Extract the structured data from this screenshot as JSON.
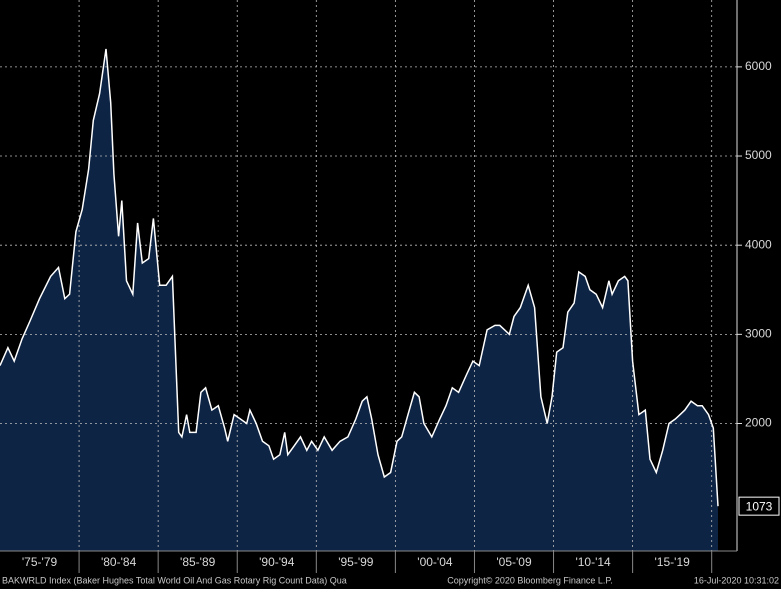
{
  "chart_data": {
    "type": "area",
    "x": [
      1975.0,
      1975.5,
      1975.9,
      1976.4,
      1976.9,
      1977.5,
      1978.2,
      1978.7,
      1979.1,
      1979.4,
      1979.8,
      1980.2,
      1980.6,
      1980.9,
      1981.3,
      1981.7,
      1982.0,
      1982.2,
      1982.5,
      1982.7,
      1983.0,
      1983.4,
      1983.7,
      1984.0,
      1984.4,
      1984.7,
      1985.1,
      1985.5,
      1985.9,
      1986.3,
      1986.5,
      1986.8,
      1987.0,
      1987.4,
      1987.7,
      1988.0,
      1988.4,
      1988.8,
      1989.2,
      1989.4,
      1989.8,
      1990.2,
      1990.6,
      1990.8,
      1991.2,
      1991.6,
      1992.0,
      1992.3,
      1992.7,
      1993.0,
      1993.2,
      1993.6,
      1994.0,
      1994.4,
      1994.7,
      1995.1,
      1995.5,
      1996.0,
      1996.5,
      1997.0,
      1997.5,
      1997.9,
      1998.2,
      1998.5,
      1998.9,
      1999.3,
      1999.7,
      2000.1,
      2000.4,
      2000.8,
      2001.2,
      2001.5,
      2001.8,
      2002.3,
      2002.8,
      2003.2,
      2003.6,
      2004.0,
      2004.5,
      2004.9,
      2005.3,
      2005.8,
      2006.3,
      2006.6,
      2007.2,
      2007.5,
      2007.9,
      2008.4,
      2008.8,
      2009.2,
      2009.6,
      2009.9,
      2010.2,
      2010.6,
      2010.9,
      2011.3,
      2011.6,
      2012.0,
      2012.3,
      2012.7,
      2013.1,
      2013.5,
      2013.7,
      2014.1,
      2014.5,
      2014.7,
      2015.0,
      2015.4,
      2015.8,
      2016.1,
      2016.5,
      2016.9,
      2017.3,
      2017.7,
      2018.0,
      2018.3,
      2018.7,
      2019.1,
      2019.4,
      2019.8,
      2020.1,
      2020.4
    ],
    "y": [
      2650,
      2850,
      2700,
      2950,
      3150,
      3400,
      3650,
      3750,
      3400,
      3450,
      4150,
      4400,
      4850,
      5400,
      5700,
      6200,
      5600,
      4800,
      4100,
      4500,
      3600,
      3450,
      4250,
      3800,
      3850,
      4300,
      3550,
      3550,
      3650,
      1900,
      1850,
      2100,
      1900,
      1900,
      2350,
      2400,
      2150,
      2200,
      1950,
      1800,
      2100,
      2050,
      2000,
      2150,
      2000,
      1800,
      1750,
      1600,
      1650,
      1900,
      1650,
      1750,
      1850,
      1700,
      1800,
      1700,
      1850,
      1700,
      1800,
      1850,
      2050,
      2250,
      2300,
      2050,
      1650,
      1400,
      1450,
      1800,
      1850,
      2100,
      2350,
      2300,
      2000,
      1850,
      2050,
      2200,
      2400,
      2350,
      2550,
      2700,
      2650,
      3050,
      3100,
      3100,
      3000,
      3200,
      3300,
      3550,
      3300,
      2300,
      2000,
      2300,
      2800,
      2850,
      3250,
      3350,
      3700,
      3650,
      3500,
      3450,
      3300,
      3600,
      3450,
      3600,
      3650,
      3600,
      2700,
      2100,
      2150,
      1600,
      1450,
      1700,
      2000,
      2050,
      2100,
      2150,
      2250,
      2200,
      2200,
      2100,
      1950,
      1073
    ],
    "xlim": [
      1975,
      2021.6
    ],
    "ylim": [
      570,
      6750
    ],
    "yticks": [
      2000,
      3000,
      4000,
      5000,
      6000
    ],
    "xticks": [
      {
        "value": 1977.5,
        "label": "'75-'79"
      },
      {
        "value": 1982.5,
        "label": "'80-'84"
      },
      {
        "value": 1987.5,
        "label": "'85-'89"
      },
      {
        "value": 1992.5,
        "label": "'90-'94"
      },
      {
        "value": 1997.5,
        "label": "'95-'99"
      },
      {
        "value": 2002.5,
        "label": "'00-'04"
      },
      {
        "value": 2007.5,
        "label": "'05-'09"
      },
      {
        "value": 2012.5,
        "label": "'10-'14"
      },
      {
        "value": 2017.5,
        "label": "'15-'19"
      }
    ],
    "xgrid": [
      1980,
      1985,
      1990,
      1995,
      2000,
      2005,
      2010,
      2015,
      2020
    ],
    "line_color": "#ffffff",
    "fill_color": "#0e2444",
    "grid": true,
    "footer": {
      "left": "BAKWRLD Index (Baker Hughes Total World Oil And Gas Rotary Rig Count Data)  Qua",
      "center": "Copyright© 2020 Bloomberg Finance L.P.",
      "right": "16-Jul-2020 10:31:02"
    }
  }
}
